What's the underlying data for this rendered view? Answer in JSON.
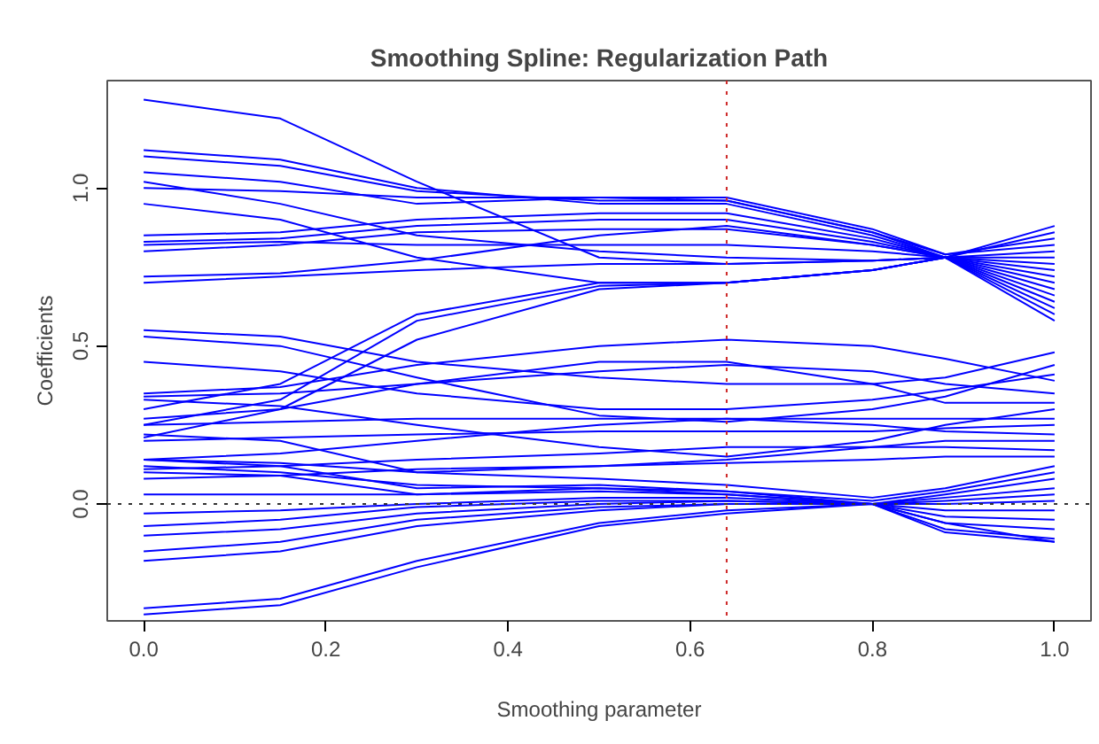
{
  "chart_data": {
    "type": "line",
    "title": "Smoothing Spline: Regularization Path",
    "xlabel": "Smoothing parameter",
    "ylabel": "Coefficients",
    "x": [
      0,
      0.15,
      0.3,
      0.5,
      0.64,
      0.8,
      0.88,
      1.0
    ],
    "xlim": [
      -0.04,
      1.04
    ],
    "ylim": [
      -0.37,
      1.34
    ],
    "xticks": [
      {
        "value": 0,
        "label": "0.0"
      },
      {
        "value": 0.2,
        "label": "0.2"
      },
      {
        "value": 0.4,
        "label": "0.4"
      },
      {
        "value": 0.6,
        "label": "0.6"
      },
      {
        "value": 0.8,
        "label": "0.8"
      },
      {
        "value": 1.0,
        "label": "1.0"
      }
    ],
    "yticks": [
      {
        "value": 0,
        "label": "0.0"
      },
      {
        "value": 0.5,
        "label": "0.5"
      },
      {
        "value": 1.0,
        "label": "1.0"
      }
    ],
    "grid": false,
    "marker": "none",
    "line_style": "solid",
    "ref_lines": [
      {
        "axis": "x",
        "value": 0.64,
        "label": null,
        "color": "#cd2626",
        "line_style": "dotted"
      },
      {
        "axis": "y",
        "value": 0,
        "label": null,
        "color": "#333333",
        "line_style": "dotted"
      }
    ],
    "series": [
      {
        "color": "#0000ff",
        "values": [
          1.28,
          1.22,
          1.02,
          0.78,
          0.76,
          0.77,
          0.78,
          0.88
        ]
      },
      {
        "color": "#0000ff",
        "values": [
          1.12,
          1.09,
          1.0,
          0.95,
          0.95,
          0.85,
          0.78,
          0.86
        ]
      },
      {
        "color": "#0000ff",
        "values": [
          1.1,
          1.07,
          0.99,
          0.96,
          0.96,
          0.86,
          0.79,
          0.84
        ]
      },
      {
        "color": "#0000ff",
        "values": [
          1.05,
          1.02,
          0.95,
          0.97,
          0.97,
          0.87,
          0.79,
          0.82
        ]
      },
      {
        "color": "#0000ff",
        "values": [
          1.0,
          0.99,
          0.97,
          0.97,
          0.96,
          0.86,
          0.78,
          0.8
        ]
      },
      {
        "color": "#0000ff",
        "values": [
          1.02,
          0.95,
          0.85,
          0.8,
          0.78,
          0.77,
          0.78,
          0.78
        ]
      },
      {
        "color": "#0000ff",
        "values": [
          0.95,
          0.9,
          0.78,
          0.7,
          0.7,
          0.74,
          0.78,
          0.76
        ]
      },
      {
        "color": "#0000ff",
        "values": [
          0.85,
          0.86,
          0.9,
          0.92,
          0.92,
          0.84,
          0.78,
          0.74
        ]
      },
      {
        "color": "#0000ff",
        "values": [
          0.83,
          0.84,
          0.88,
          0.9,
          0.9,
          0.83,
          0.78,
          0.72
        ]
      },
      {
        "color": "#0000ff",
        "values": [
          0.82,
          0.83,
          0.82,
          0.82,
          0.82,
          0.8,
          0.78,
          0.7
        ]
      },
      {
        "color": "#0000ff",
        "values": [
          0.8,
          0.82,
          0.86,
          0.87,
          0.87,
          0.82,
          0.78,
          0.68
        ]
      },
      {
        "color": "#0000ff",
        "values": [
          0.72,
          0.73,
          0.77,
          0.85,
          0.88,
          0.82,
          0.78,
          0.66
        ]
      },
      {
        "color": "#0000ff",
        "values": [
          0.7,
          0.72,
          0.74,
          0.76,
          0.76,
          0.77,
          0.78,
          0.64
        ]
      },
      {
        "color": "#0000ff",
        "values": [
          0.3,
          0.38,
          0.6,
          0.7,
          0.7,
          0.74,
          0.78,
          0.62
        ]
      },
      {
        "color": "#0000ff",
        "values": [
          0.25,
          0.33,
          0.58,
          0.69,
          0.7,
          0.74,
          0.78,
          0.6
        ]
      },
      {
        "color": "#0000ff",
        "values": [
          0.21,
          0.3,
          0.52,
          0.68,
          0.7,
          0.74,
          0.78,
          0.58
        ]
      },
      {
        "color": "#0000ff",
        "values": [
          0.55,
          0.53,
          0.45,
          0.4,
          0.38,
          0.38,
          0.4,
          0.48
        ]
      },
      {
        "color": "#0000ff",
        "values": [
          0.53,
          0.5,
          0.4,
          0.28,
          0.26,
          0.3,
          0.34,
          0.44
        ]
      },
      {
        "color": "#0000ff",
        "values": [
          0.45,
          0.42,
          0.35,
          0.3,
          0.3,
          0.33,
          0.36,
          0.41
        ]
      },
      {
        "color": "#0000ff",
        "values": [
          0.35,
          0.37,
          0.44,
          0.5,
          0.52,
          0.5,
          0.46,
          0.39
        ]
      },
      {
        "color": "#0000ff",
        "values": [
          0.34,
          0.35,
          0.38,
          0.42,
          0.44,
          0.42,
          0.38,
          0.35
        ]
      },
      {
        "color": "#0000ff",
        "values": [
          0.27,
          0.3,
          0.38,
          0.45,
          0.45,
          0.38,
          0.32,
          0.32
        ]
      },
      {
        "color": "#0000ff",
        "values": [
          0.33,
          0.31,
          0.25,
          0.18,
          0.15,
          0.2,
          0.25,
          0.3
        ]
      },
      {
        "color": "#0000ff",
        "values": [
          0.25,
          0.26,
          0.27,
          0.27,
          0.27,
          0.27,
          0.27,
          0.27
        ]
      },
      {
        "color": "#0000ff",
        "values": [
          0.2,
          0.21,
          0.22,
          0.23,
          0.23,
          0.23,
          0.24,
          0.25
        ]
      },
      {
        "color": "#0000ff",
        "values": [
          0.14,
          0.16,
          0.2,
          0.25,
          0.27,
          0.25,
          0.23,
          0.22
        ]
      },
      {
        "color": "#0000ff",
        "values": [
          0.14,
          0.13,
          0.1,
          0.12,
          0.14,
          0.18,
          0.2,
          0.2
        ]
      },
      {
        "color": "#0000ff",
        "values": [
          0.11,
          0.12,
          0.14,
          0.16,
          0.18,
          0.18,
          0.18,
          0.17
        ]
      },
      {
        "color": "#0000ff",
        "values": [
          0.08,
          0.09,
          0.11,
          0.12,
          0.13,
          0.14,
          0.15,
          0.15
        ]
      },
      {
        "color": "#0000ff",
        "values": [
          0.22,
          0.2,
          0.1,
          0.08,
          0.06,
          0.02,
          0.05,
          0.12
        ]
      },
      {
        "color": "#0000ff",
        "values": [
          0.14,
          0.12,
          0.05,
          0.06,
          0.04,
          0.01,
          0.04,
          0.1
        ]
      },
      {
        "color": "#0000ff",
        "values": [
          0.1,
          0.09,
          0.03,
          0.05,
          0.03,
          0.0,
          0.03,
          0.08
        ]
      },
      {
        "color": "#0000ff",
        "values": [
          0.03,
          0.03,
          0.03,
          0.04,
          0.03,
          0.0,
          0.02,
          0.05
        ]
      },
      {
        "color": "#0000ff",
        "values": [
          -0.03,
          -0.02,
          0.0,
          0.02,
          0.02,
          0.0,
          0.01,
          0.03
        ]
      },
      {
        "color": "#0000ff",
        "values": [
          -0.07,
          -0.05,
          -0.01,
          0.01,
          0.01,
          0.0,
          0.0,
          0.01
        ]
      },
      {
        "color": "#0000ff",
        "values": [
          -0.1,
          -0.08,
          -0.03,
          0.0,
          0.01,
          0.0,
          -0.02,
          -0.02
        ]
      },
      {
        "color": "#0000ff",
        "values": [
          -0.15,
          -0.12,
          -0.05,
          -0.01,
          0.0,
          0.0,
          -0.04,
          -0.05
        ]
      },
      {
        "color": "#0000ff",
        "values": [
          -0.18,
          -0.15,
          -0.07,
          -0.02,
          0.0,
          0.0,
          -0.06,
          -0.08
        ]
      },
      {
        "color": "#0000ff",
        "values": [
          -0.33,
          -0.3,
          -0.18,
          -0.06,
          -0.02,
          0.0,
          -0.08,
          -0.11
        ]
      },
      {
        "color": "#0000ff",
        "values": [
          -0.35,
          -0.32,
          -0.2,
          -0.07,
          -0.03,
          0.0,
          -0.09,
          -0.12
        ]
      },
      {
        "color": "#0000ff",
        "values": [
          0.12,
          0.1,
          0.06,
          0.05,
          0.04,
          0.0,
          -0.06,
          -0.12
        ]
      }
    ]
  }
}
